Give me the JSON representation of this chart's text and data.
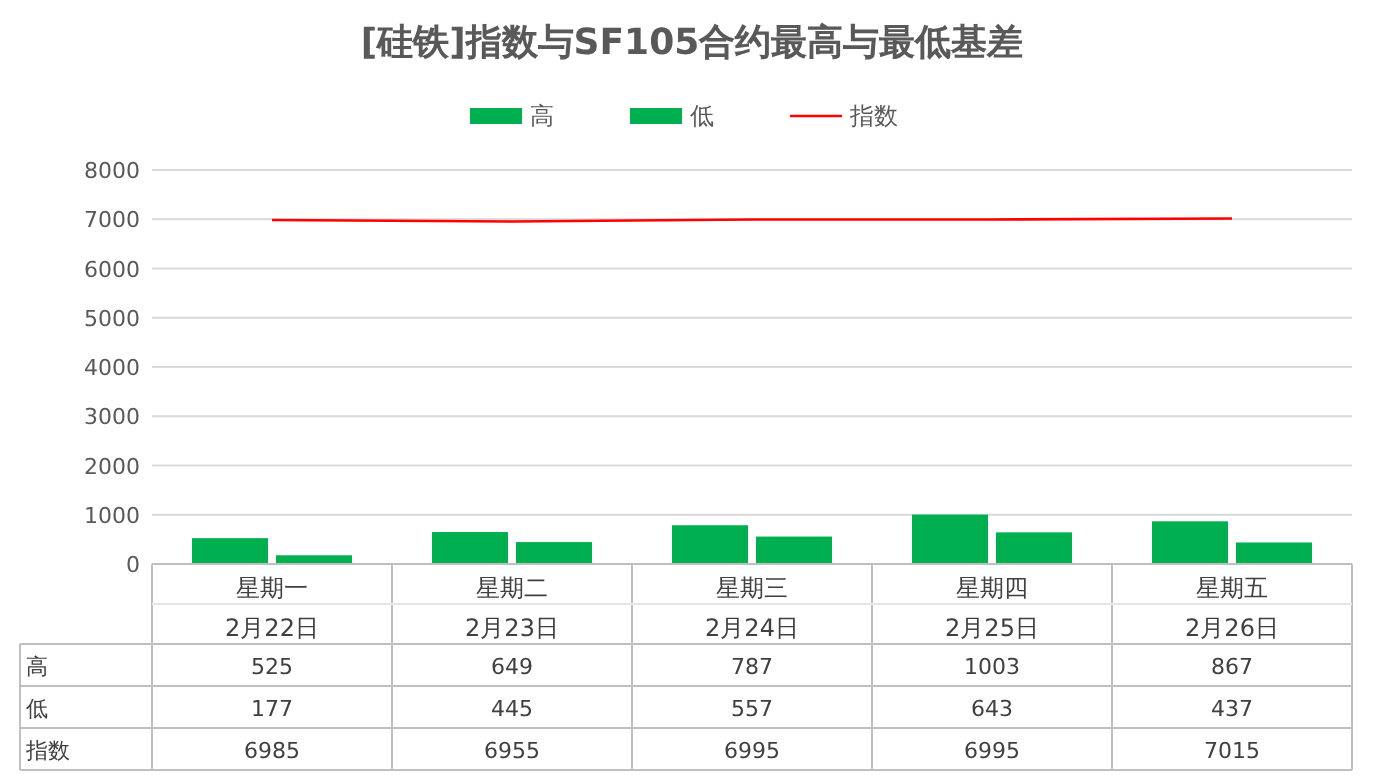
{
  "chart_data": {
    "type": "bar",
    "title": "[硅铁]指数与SF105合约最高与最低基差",
    "categories": [
      "星期一\n2月22日",
      "星期二\n2月23日",
      "星期三\n2月24日",
      "星期四\n2月25日",
      "星期五\n2月26日"
    ],
    "series": [
      {
        "name": "高",
        "color": "#00b050",
        "values": [
          525,
          649,
          787,
          1003,
          867
        ]
      },
      {
        "name": "低",
        "color": "#00b050",
        "values": [
          177,
          445,
          557,
          643,
          437
        ]
      },
      {
        "name": "指数",
        "type": "line",
        "color": "#ff0000",
        "values": [
          6985,
          6955,
          6995,
          6995,
          7015
        ]
      }
    ],
    "ylim": [
      0,
      8000
    ],
    "yticks": [
      0,
      1000,
      2000,
      3000,
      4000,
      5000,
      6000,
      7000,
      8000
    ],
    "grid": "y",
    "legend": "top",
    "data_labels": true
  }
}
